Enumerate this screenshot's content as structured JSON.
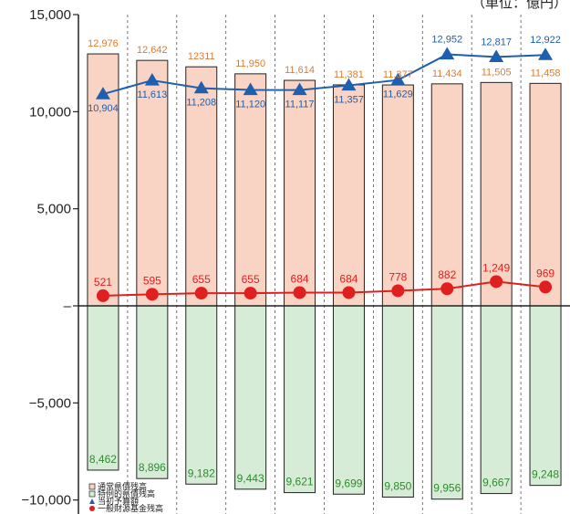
{
  "chart_data": {
    "type": "bar",
    "unit_label": "（単位：億円）",
    "y_ticks": [
      "15,000",
      "10,000",
      "5,000",
      "–",
      "−5,000",
      "−10,000"
    ],
    "y_tick_values": [
      15000,
      10000,
      5000,
      0,
      -5000,
      -10000
    ],
    "ylim": [
      -10200,
      15000
    ],
    "categories": [
      "",
      "",
      "",
      "",
      "",
      "",
      "",
      "",
      "",
      ""
    ],
    "series": [
      {
        "name": "通常県債残高",
        "type": "bar",
        "color": "#f9d3c4",
        "stroke": "#222222",
        "values": [
          12976,
          12642,
          12311,
          11950,
          11614,
          11381,
          11377,
          11434,
          11505,
          11458
        ],
        "labels": [
          "12,976",
          "12,642",
          "12311",
          "11,950",
          "11,614",
          "11,381",
          "11,377",
          "11,434",
          "11,505",
          "11,458"
        ]
      },
      {
        "name": "特例的県債残高",
        "type": "bar",
        "color": "#d7ecd7",
        "stroke": "#222222",
        "values": [
          -8462,
          -8896,
          -9182,
          -9443,
          -9621,
          -9699,
          -9850,
          -9956,
          -9667,
          -9248
        ],
        "labels": [
          "8,462",
          "8,896",
          "9,182",
          "9,443",
          "9,621",
          "9,699",
          "9,850",
          "9,956",
          "9,667",
          "9,248"
        ]
      },
      {
        "name": "当初予算額",
        "type": "line",
        "color": "#1f5fae",
        "values": [
          10904,
          11613,
          11208,
          11120,
          11117,
          11357,
          11629,
          12952,
          12817,
          12922
        ],
        "labels": [
          "10,904",
          "11,613",
          "11,208",
          "11,120",
          "11,117",
          "11,357",
          "11,629",
          "12,952",
          "12,817",
          "12,922"
        ]
      },
      {
        "name": "一般財源基金残高",
        "type": "line",
        "color": "#e02020",
        "values": [
          521,
          595,
          655,
          655,
          684,
          684,
          778,
          882,
          1249,
          969
        ],
        "labels": [
          "521",
          "595",
          "655",
          "655",
          "684",
          "684",
          "778",
          "882",
          "1,249",
          "969"
        ]
      }
    ],
    "legend": {
      "placement": "bottom-left",
      "entries": [
        {
          "label": "通常県債残高",
          "marker": "square",
          "color": "#f9d3c4"
        },
        {
          "label": "特例的県債残高",
          "marker": "square",
          "color": "#d7ecd7"
        },
        {
          "label": "当初予算額",
          "marker": "triangle",
          "color": "#1f5fae"
        },
        {
          "label": "一般財源基金残高",
          "marker": "circle",
          "color": "#e02020"
        }
      ]
    },
    "grid": "vertical-dashed"
  }
}
